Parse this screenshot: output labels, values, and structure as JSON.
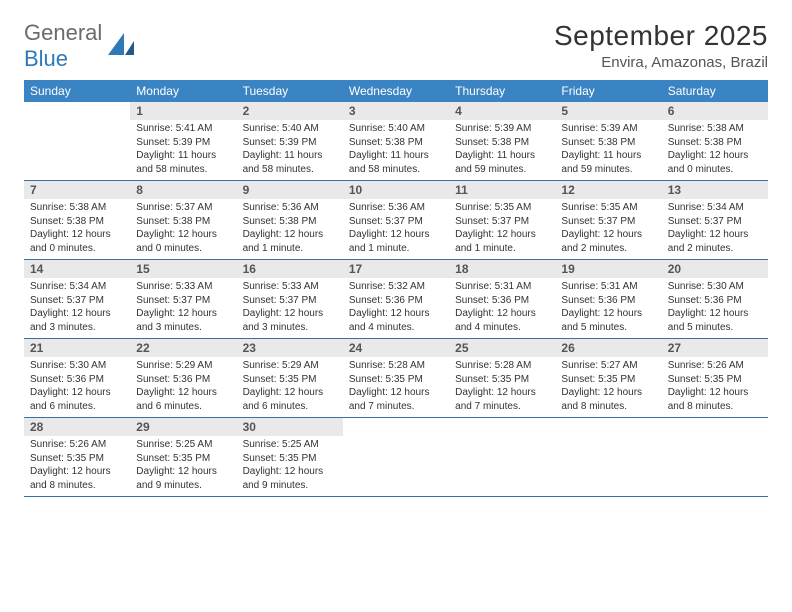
{
  "brand": {
    "text_general": "General",
    "text_blue": "Blue"
  },
  "title": "September 2025",
  "location": "Envira, Amazonas, Brazil",
  "colors": {
    "header_bg": "#3b84c4",
    "header_text": "#ffffff",
    "daynum_bg": "#e9e9e9",
    "daynum_text": "#555555",
    "rule": "#3b6fa0",
    "body_text": "#333333",
    "brand_gray": "#6b6b6b",
    "brand_blue": "#2f79b9"
  },
  "typography": {
    "title_fontsize": 28,
    "location_fontsize": 15,
    "dow_fontsize": 12,
    "daynum_fontsize": 12,
    "info_fontsize": 10
  },
  "layout": {
    "columns": 7,
    "rows": 5,
    "cell_min_height": 78
  },
  "dow": [
    "Sunday",
    "Monday",
    "Tuesday",
    "Wednesday",
    "Thursday",
    "Friday",
    "Saturday"
  ],
  "weeks": [
    [
      {
        "day": null
      },
      {
        "day": "1",
        "sunrise": "Sunrise: 5:41 AM",
        "sunset": "Sunset: 5:39 PM",
        "daylight1": "Daylight: 11 hours",
        "daylight2": "and 58 minutes."
      },
      {
        "day": "2",
        "sunrise": "Sunrise: 5:40 AM",
        "sunset": "Sunset: 5:39 PM",
        "daylight1": "Daylight: 11 hours",
        "daylight2": "and 58 minutes."
      },
      {
        "day": "3",
        "sunrise": "Sunrise: 5:40 AM",
        "sunset": "Sunset: 5:38 PM",
        "daylight1": "Daylight: 11 hours",
        "daylight2": "and 58 minutes."
      },
      {
        "day": "4",
        "sunrise": "Sunrise: 5:39 AM",
        "sunset": "Sunset: 5:38 PM",
        "daylight1": "Daylight: 11 hours",
        "daylight2": "and 59 minutes."
      },
      {
        "day": "5",
        "sunrise": "Sunrise: 5:39 AM",
        "sunset": "Sunset: 5:38 PM",
        "daylight1": "Daylight: 11 hours",
        "daylight2": "and 59 minutes."
      },
      {
        "day": "6",
        "sunrise": "Sunrise: 5:38 AM",
        "sunset": "Sunset: 5:38 PM",
        "daylight1": "Daylight: 12 hours",
        "daylight2": "and 0 minutes."
      }
    ],
    [
      {
        "day": "7",
        "sunrise": "Sunrise: 5:38 AM",
        "sunset": "Sunset: 5:38 PM",
        "daylight1": "Daylight: 12 hours",
        "daylight2": "and 0 minutes."
      },
      {
        "day": "8",
        "sunrise": "Sunrise: 5:37 AM",
        "sunset": "Sunset: 5:38 PM",
        "daylight1": "Daylight: 12 hours",
        "daylight2": "and 0 minutes."
      },
      {
        "day": "9",
        "sunrise": "Sunrise: 5:36 AM",
        "sunset": "Sunset: 5:38 PM",
        "daylight1": "Daylight: 12 hours",
        "daylight2": "and 1 minute."
      },
      {
        "day": "10",
        "sunrise": "Sunrise: 5:36 AM",
        "sunset": "Sunset: 5:37 PM",
        "daylight1": "Daylight: 12 hours",
        "daylight2": "and 1 minute."
      },
      {
        "day": "11",
        "sunrise": "Sunrise: 5:35 AM",
        "sunset": "Sunset: 5:37 PM",
        "daylight1": "Daylight: 12 hours",
        "daylight2": "and 1 minute."
      },
      {
        "day": "12",
        "sunrise": "Sunrise: 5:35 AM",
        "sunset": "Sunset: 5:37 PM",
        "daylight1": "Daylight: 12 hours",
        "daylight2": "and 2 minutes."
      },
      {
        "day": "13",
        "sunrise": "Sunrise: 5:34 AM",
        "sunset": "Sunset: 5:37 PM",
        "daylight1": "Daylight: 12 hours",
        "daylight2": "and 2 minutes."
      }
    ],
    [
      {
        "day": "14",
        "sunrise": "Sunrise: 5:34 AM",
        "sunset": "Sunset: 5:37 PM",
        "daylight1": "Daylight: 12 hours",
        "daylight2": "and 3 minutes."
      },
      {
        "day": "15",
        "sunrise": "Sunrise: 5:33 AM",
        "sunset": "Sunset: 5:37 PM",
        "daylight1": "Daylight: 12 hours",
        "daylight2": "and 3 minutes."
      },
      {
        "day": "16",
        "sunrise": "Sunrise: 5:33 AM",
        "sunset": "Sunset: 5:37 PM",
        "daylight1": "Daylight: 12 hours",
        "daylight2": "and 3 minutes."
      },
      {
        "day": "17",
        "sunrise": "Sunrise: 5:32 AM",
        "sunset": "Sunset: 5:36 PM",
        "daylight1": "Daylight: 12 hours",
        "daylight2": "and 4 minutes."
      },
      {
        "day": "18",
        "sunrise": "Sunrise: 5:31 AM",
        "sunset": "Sunset: 5:36 PM",
        "daylight1": "Daylight: 12 hours",
        "daylight2": "and 4 minutes."
      },
      {
        "day": "19",
        "sunrise": "Sunrise: 5:31 AM",
        "sunset": "Sunset: 5:36 PM",
        "daylight1": "Daylight: 12 hours",
        "daylight2": "and 5 minutes."
      },
      {
        "day": "20",
        "sunrise": "Sunrise: 5:30 AM",
        "sunset": "Sunset: 5:36 PM",
        "daylight1": "Daylight: 12 hours",
        "daylight2": "and 5 minutes."
      }
    ],
    [
      {
        "day": "21",
        "sunrise": "Sunrise: 5:30 AM",
        "sunset": "Sunset: 5:36 PM",
        "daylight1": "Daylight: 12 hours",
        "daylight2": "and 6 minutes."
      },
      {
        "day": "22",
        "sunrise": "Sunrise: 5:29 AM",
        "sunset": "Sunset: 5:36 PM",
        "daylight1": "Daylight: 12 hours",
        "daylight2": "and 6 minutes."
      },
      {
        "day": "23",
        "sunrise": "Sunrise: 5:29 AM",
        "sunset": "Sunset: 5:35 PM",
        "daylight1": "Daylight: 12 hours",
        "daylight2": "and 6 minutes."
      },
      {
        "day": "24",
        "sunrise": "Sunrise: 5:28 AM",
        "sunset": "Sunset: 5:35 PM",
        "daylight1": "Daylight: 12 hours",
        "daylight2": "and 7 minutes."
      },
      {
        "day": "25",
        "sunrise": "Sunrise: 5:28 AM",
        "sunset": "Sunset: 5:35 PM",
        "daylight1": "Daylight: 12 hours",
        "daylight2": "and 7 minutes."
      },
      {
        "day": "26",
        "sunrise": "Sunrise: 5:27 AM",
        "sunset": "Sunset: 5:35 PM",
        "daylight1": "Daylight: 12 hours",
        "daylight2": "and 8 minutes."
      },
      {
        "day": "27",
        "sunrise": "Sunrise: 5:26 AM",
        "sunset": "Sunset: 5:35 PM",
        "daylight1": "Daylight: 12 hours",
        "daylight2": "and 8 minutes."
      }
    ],
    [
      {
        "day": "28",
        "sunrise": "Sunrise: 5:26 AM",
        "sunset": "Sunset: 5:35 PM",
        "daylight1": "Daylight: 12 hours",
        "daylight2": "and 8 minutes."
      },
      {
        "day": "29",
        "sunrise": "Sunrise: 5:25 AM",
        "sunset": "Sunset: 5:35 PM",
        "daylight1": "Daylight: 12 hours",
        "daylight2": "and 9 minutes."
      },
      {
        "day": "30",
        "sunrise": "Sunrise: 5:25 AM",
        "sunset": "Sunset: 5:35 PM",
        "daylight1": "Daylight: 12 hours",
        "daylight2": "and 9 minutes."
      },
      {
        "day": null
      },
      {
        "day": null
      },
      {
        "day": null
      },
      {
        "day": null
      }
    ]
  ]
}
